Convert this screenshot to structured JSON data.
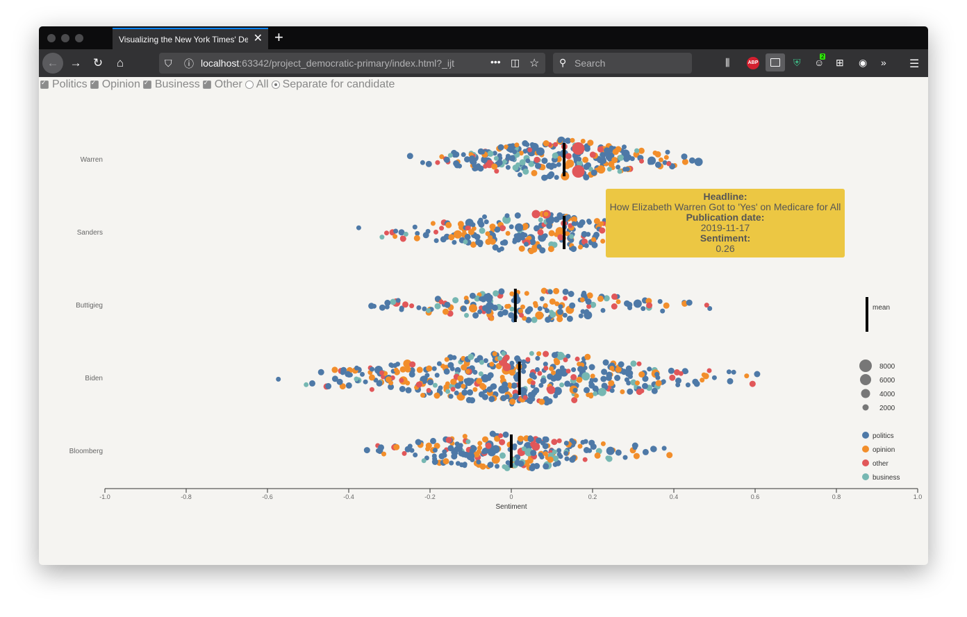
{
  "browser": {
    "tab_title": "Visualizing the New York Times' De",
    "url_host": "localhost",
    "url_rest": ":63342/project_democratic-primary/index.html?_ijt",
    "search_placeholder": "Search",
    "badge_count": "2"
  },
  "controls": [
    {
      "label": "Politics",
      "type": "checkbox",
      "checked": true
    },
    {
      "label": "Opinion",
      "type": "checkbox",
      "checked": true
    },
    {
      "label": "Business",
      "type": "checkbox",
      "checked": true
    },
    {
      "label": "Other",
      "type": "checkbox",
      "checked": true
    },
    {
      "label": "All",
      "type": "radio",
      "checked": false
    },
    {
      "label": "Separate for candidate",
      "type": "radio",
      "checked": true
    }
  ],
  "tooltip": {
    "headline_label": "Headline:",
    "headline": "How Elizabeth Warren Got to 'Yes' on Medicare for All",
    "date_label": "Publication date:",
    "date": "2019-11-17",
    "sentiment_label": "Sentiment:",
    "sentiment": "0.26"
  },
  "chart_data": {
    "type": "scatter",
    "xlabel": "Sentiment",
    "xlim": [
      -1.0,
      1.0
    ],
    "xticks": [
      "-1.0",
      "-0.8",
      "-0.6",
      "-0.4",
      "-0.2",
      "0",
      "0.2",
      "0.4",
      "0.6",
      "0.8",
      "1.0"
    ],
    "candidates": [
      {
        "name": "Warren",
        "mean": 0.13
      },
      {
        "name": "Sanders",
        "mean": 0.13
      },
      {
        "name": "Buttigieg",
        "mean": 0.01
      },
      {
        "name": "Biden",
        "mean": 0.02
      },
      {
        "name": "Bloomberg",
        "mean": 0.0
      }
    ],
    "categories": [
      {
        "name": "politics",
        "color": "#4e79a7"
      },
      {
        "name": "opinion",
        "color": "#f28e2b"
      },
      {
        "name": "other",
        "color": "#e15759"
      },
      {
        "name": "business",
        "color": "#76b7b2"
      }
    ],
    "size_legend": [
      "8000",
      "6000",
      "4000",
      "2000"
    ],
    "mean_label": "mean"
  }
}
